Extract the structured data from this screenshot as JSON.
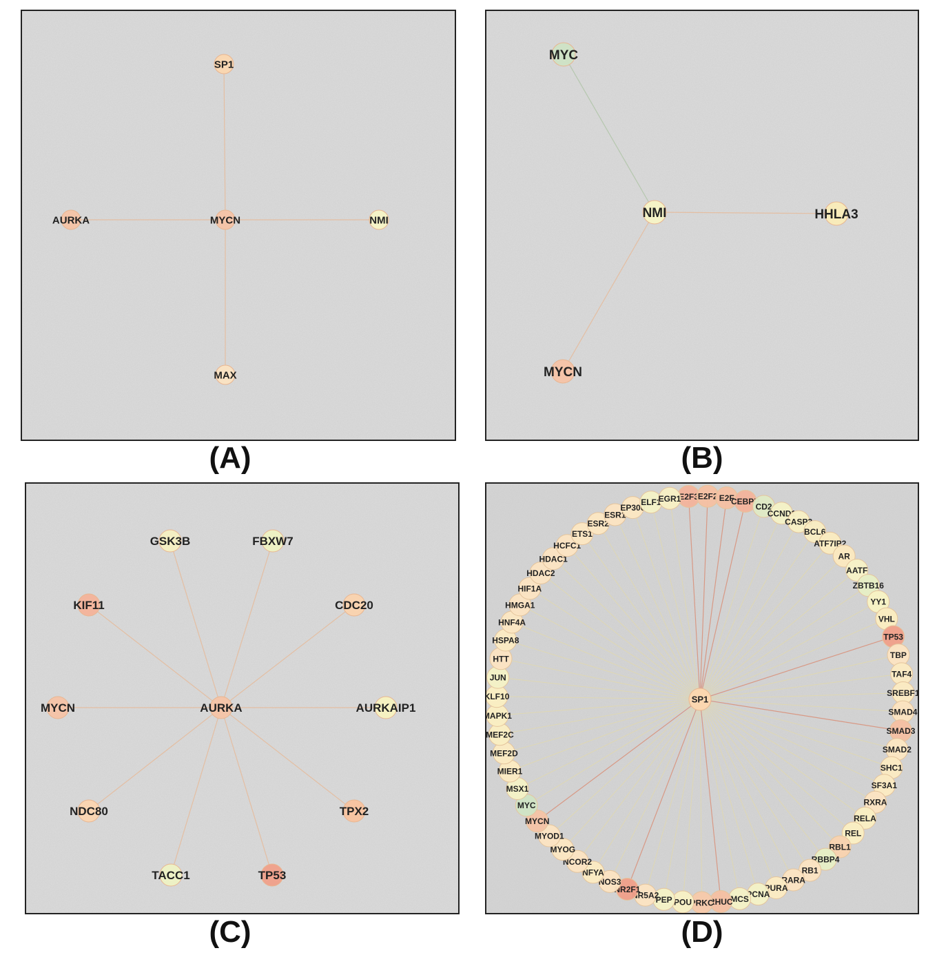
{
  "panels": [
    {
      "id": "A",
      "caption": "(A)",
      "center": "MYCN",
      "nodes": [
        {
          "name": "SP1",
          "color": "#fbd7b0"
        },
        {
          "name": "AURKA",
          "color": "#f6c4a6"
        },
        {
          "name": "MYCN",
          "color": "#f5c3a6"
        },
        {
          "name": "NMI",
          "color": "#f7f4c6"
        },
        {
          "name": "MAX",
          "color": "#fbe3c2"
        }
      ]
    },
    {
      "id": "B",
      "caption": "(B)",
      "center": "NMI",
      "nodes": [
        {
          "name": "MYC",
          "color": "#cfe3c5"
        },
        {
          "name": "NMI",
          "color": "#f7f4c6"
        },
        {
          "name": "HHLA3",
          "color": "#faecb8"
        },
        {
          "name": "MYCN",
          "color": "#f5c3a6"
        }
      ]
    },
    {
      "id": "C",
      "caption": "(C)",
      "center": "AURKA",
      "nodes": [
        {
          "name": "GSK3B",
          "color": "#f5f0c2"
        },
        {
          "name": "FBXW7",
          "color": "#eef2c2"
        },
        {
          "name": "KIF11",
          "color": "#f4b39a"
        },
        {
          "name": "CDC20",
          "color": "#fad3ae"
        },
        {
          "name": "MYCN",
          "color": "#f5c3a6"
        },
        {
          "name": "AURKA",
          "color": "#f6c4a6"
        },
        {
          "name": "AURKAIP1",
          "color": "#f7f2c0"
        },
        {
          "name": "NDC80",
          "color": "#fbd5b0"
        },
        {
          "name": "TPX2",
          "color": "#f8c39f"
        },
        {
          "name": "TACC1",
          "color": "#eef2c4"
        },
        {
          "name": "TP53",
          "color": "#f0a08a"
        }
      ]
    },
    {
      "id": "D",
      "caption": "(D)",
      "center": "SP1",
      "center_color": "#fbd7b0",
      "ring": [
        {
          "name": "E2F3",
          "color": "#f3b49c"
        },
        {
          "name": "E2F2",
          "color": "#f5c0a3"
        },
        {
          "name": "E2F",
          "color": "#f5c0a3"
        },
        {
          "name": "CEBPB",
          "color": "#f3b49c"
        },
        {
          "name": "CD2",
          "color": "#dfe9c5"
        },
        {
          "name": "CCND1",
          "color": "#f4f2c6"
        },
        {
          "name": "CASP3",
          "color": "#f7efc4"
        },
        {
          "name": "BCL6",
          "color": "#f8ecc2"
        },
        {
          "name": "ATF7IP2",
          "color": "#faebc0"
        },
        {
          "name": "AR",
          "color": "#fbe8bf"
        },
        {
          "name": "AATF",
          "color": "#f7f2c6"
        },
        {
          "name": "ZBTB16",
          "color": "#e6eec5"
        },
        {
          "name": "YY1",
          "color": "#f7f3c4"
        },
        {
          "name": "VHL",
          "color": "#faecc0"
        },
        {
          "name": "TP53",
          "color": "#f0a08a"
        },
        {
          "name": "TBP",
          "color": "#fbe3c2"
        },
        {
          "name": "TAF4",
          "color": "#fbeac2"
        },
        {
          "name": "SREBF1",
          "color": "#fbeac2"
        },
        {
          "name": "SMAD4",
          "color": "#fbe3c0"
        },
        {
          "name": "SMAD3",
          "color": "#f5c0a3"
        },
        {
          "name": "SMAD2",
          "color": "#fbe6c2"
        },
        {
          "name": "SHC1",
          "color": "#fbeac2"
        },
        {
          "name": "SF3A1",
          "color": "#fbeac2"
        },
        {
          "name": "RXRA",
          "color": "#fbe3c2"
        },
        {
          "name": "RELA",
          "color": "#faeec2"
        },
        {
          "name": "REL",
          "color": "#faeec2"
        },
        {
          "name": "RBL1",
          "color": "#f8d3b0"
        },
        {
          "name": "RBBP4",
          "color": "#e6eec5"
        },
        {
          "name": "RB1",
          "color": "#fbe3c2"
        },
        {
          "name": "RARA",
          "color": "#fbe3c2"
        },
        {
          "name": "PURA",
          "color": "#fbeac2"
        },
        {
          "name": "PCNA",
          "color": "#f4f2c6"
        },
        {
          "name": "MCS",
          "color": "#f4f2c6"
        },
        {
          "name": "RHUC",
          "color": "#f5c0a3"
        },
        {
          "name": "PRKC",
          "color": "#f6c9aa"
        },
        {
          "name": "POU",
          "color": "#f7efc4"
        },
        {
          "name": "PEP",
          "color": "#f4f2c6"
        },
        {
          "name": "NR5A2",
          "color": "#fbe3c2"
        },
        {
          "name": "NR2F1",
          "color": "#f0a08a"
        },
        {
          "name": "NOS3",
          "color": "#fbe3c2"
        },
        {
          "name": "NFYA",
          "color": "#fbeac2"
        },
        {
          "name": "NCOR2",
          "color": "#fbe3c2"
        },
        {
          "name": "MYOG",
          "color": "#fbe6c2"
        },
        {
          "name": "MYOD1",
          "color": "#fbe3c2"
        },
        {
          "name": "MYCN",
          "color": "#f5c3a6"
        },
        {
          "name": "MYC",
          "color": "#cfe3c5"
        },
        {
          "name": "MSX1",
          "color": "#f4f2c6"
        },
        {
          "name": "MIER1",
          "color": "#fbeac2"
        },
        {
          "name": "MEF2D",
          "color": "#fbeac2"
        },
        {
          "name": "MEF2C",
          "color": "#faeec2"
        },
        {
          "name": "MAPK1",
          "color": "#faeec2"
        },
        {
          "name": "KLF10",
          "color": "#faeec2"
        },
        {
          "name": "JUN",
          "color": "#f4f2c6"
        },
        {
          "name": "HTT",
          "color": "#fbe3c2"
        },
        {
          "name": "HSPA8",
          "color": "#fbeac2"
        },
        {
          "name": "HNF4A",
          "color": "#fbe6c2"
        },
        {
          "name": "HMGA1",
          "color": "#fbe3c2"
        },
        {
          "name": "HIF1A",
          "color": "#fbe3c2"
        },
        {
          "name": "HDAC2",
          "color": "#fbe3c2"
        },
        {
          "name": "HDAC1",
          "color": "#fbe3c2"
        },
        {
          "name": "HCFC1",
          "color": "#fbe3c2"
        },
        {
          "name": "ETS1",
          "color": "#fbe6c2"
        },
        {
          "name": "ESR2",
          "color": "#fbe6c2"
        },
        {
          "name": "ESR1",
          "color": "#fbe3c2"
        },
        {
          "name": "EP300",
          "color": "#fbe6c2"
        },
        {
          "name": "ELF1",
          "color": "#f4f2c6"
        },
        {
          "name": "EGR1",
          "color": "#f7efc4"
        }
      ]
    }
  ]
}
